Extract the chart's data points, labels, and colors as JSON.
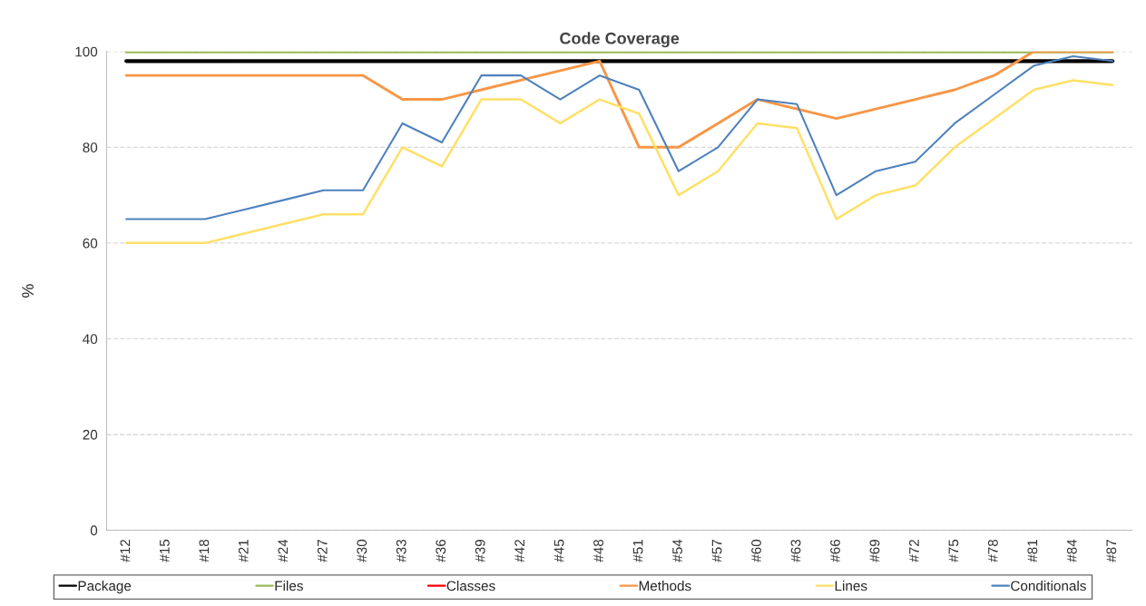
{
  "chart_data": {
    "type": "line",
    "title": "Code Coverage",
    "ylabel": "%",
    "categories": [
      "#12",
      "#15",
      "#18",
      "#21",
      "#24",
      "#27",
      "#30",
      "#33",
      "#36",
      "#39",
      "#42",
      "#45",
      "#48",
      "#51",
      "#54",
      "#57",
      "#60",
      "#63",
      "#66",
      "#69",
      "#72",
      "#75",
      "#78",
      "#81",
      "#84",
      "#87"
    ],
    "series": [
      {
        "name": "Package",
        "color": "#000000",
        "values": [
          98,
          98,
          98,
          98,
          98,
          98,
          98,
          98,
          98,
          98,
          98,
          98,
          98,
          98,
          98,
          98,
          98,
          98,
          98,
          98,
          98,
          98,
          98,
          98,
          98,
          98
        ]
      },
      {
        "name": "Files",
        "color": "#9bbb59",
        "values": [
          100,
          100,
          100,
          100,
          100,
          100,
          100,
          100,
          100,
          100,
          100,
          100,
          100,
          100,
          100,
          100,
          100,
          100,
          100,
          100,
          100,
          100,
          100,
          100,
          100,
          100
        ]
      },
      {
        "name": "Classes",
        "color": "#ff0000",
        "values": [
          null,
          null,
          null,
          null,
          null,
          null,
          null,
          null,
          null,
          null,
          null,
          null,
          null,
          null,
          null,
          null,
          null,
          null,
          null,
          null,
          null,
          null,
          null,
          null,
          null,
          null
        ]
      },
      {
        "name": "Methods",
        "color": "#f79646",
        "values": [
          95,
          95,
          95,
          95,
          95,
          95,
          95,
          90,
          90,
          92,
          94,
          96,
          98,
          80,
          80,
          85,
          90,
          88,
          86,
          88,
          90,
          92,
          95,
          100,
          100,
          100
        ]
      },
      {
        "name": "Lines",
        "color": "#ffe066",
        "values": [
          60,
          60,
          60,
          62,
          64,
          66,
          66,
          80,
          76,
          90,
          90,
          85,
          90,
          87,
          70,
          75,
          85,
          84,
          65,
          70,
          72,
          80,
          86,
          92,
          94,
          93
        ]
      },
      {
        "name": "Conditionals",
        "color": "#4f81bd",
        "values": [
          65,
          65,
          65,
          67,
          69,
          71,
          71,
          85,
          81,
          95,
          95,
          90,
          95,
          92,
          75,
          80,
          90,
          89,
          70,
          75,
          77,
          85,
          91,
          97,
          99,
          98
        ]
      }
    ],
    "ylim": [
      0,
      100
    ],
    "yticks": [
      0,
      20,
      40,
      60,
      80,
      100
    ],
    "grid": "y",
    "legend": "bottom"
  }
}
